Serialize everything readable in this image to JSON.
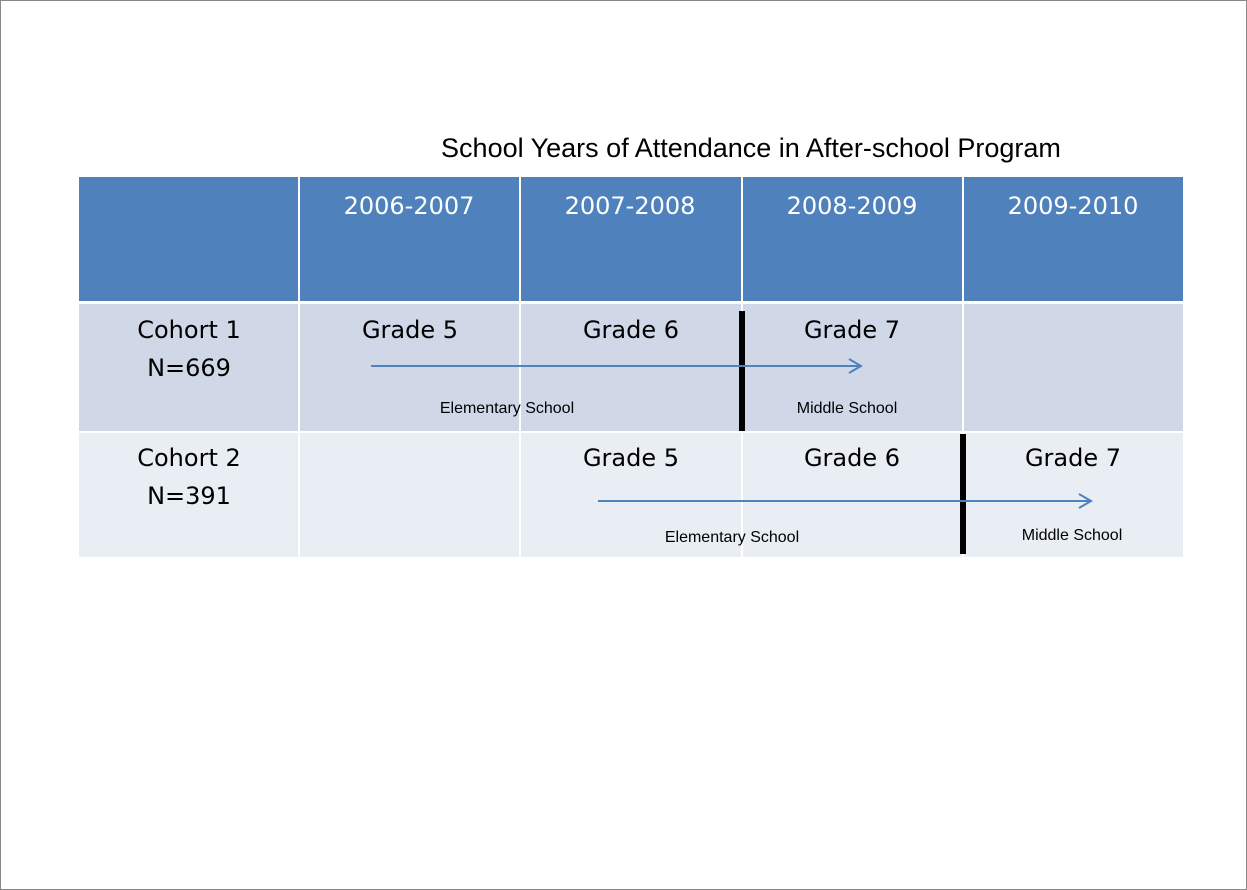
{
  "title": "School Years of Attendance in After-school Program",
  "table": {
    "columns": [
      "2006-2007",
      "2007-2008",
      "2008-2009",
      "2009-2010"
    ],
    "rows": [
      {
        "cohort": "Cohort 1",
        "n": "N=669",
        "grades": [
          "Grade 5",
          "Grade 6",
          "Grade 7"
        ],
        "phases": [
          "Elementary School",
          "Middle School"
        ]
      },
      {
        "cohort": "Cohort 2",
        "n": "N=391",
        "grades": [
          "Grade 5",
          "Grade 6",
          "Grade 7"
        ],
        "phases": [
          "Elementary School",
          "Middle School"
        ]
      }
    ]
  }
}
